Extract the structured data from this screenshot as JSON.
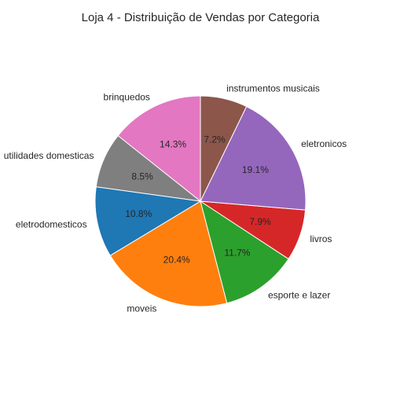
{
  "chart_data": {
    "type": "pie",
    "title": "Loja 4 - Distribuição de Vendas por Categoria",
    "start_angle_deg": 90,
    "direction": "counterclockwise",
    "slices": [
      {
        "label": "brinquedos",
        "value": 14.3,
        "pct_text": "14.3%",
        "color": "#e377c2"
      },
      {
        "label": "utilidades domesticas",
        "value": 8.5,
        "pct_text": "8.5%",
        "color": "#7f7f7f"
      },
      {
        "label": "eletrodomesticos",
        "value": 10.8,
        "pct_text": "10.8%",
        "color": "#1f77b4"
      },
      {
        "label": "moveis",
        "value": 20.4,
        "pct_text": "20.4%",
        "color": "#ff7f0e"
      },
      {
        "label": "esporte e lazer",
        "value": 11.7,
        "pct_text": "11.7%",
        "color": "#2ca02c"
      },
      {
        "label": "livros",
        "value": 7.9,
        "pct_text": "7.9%",
        "color": "#d62728"
      },
      {
        "label": "eletronicos",
        "value": 19.1,
        "pct_text": "19.1%",
        "color": "#9467bd"
      },
      {
        "label": "instrumentos musicais",
        "value": 7.2,
        "pct_text": "7.2%",
        "color": "#8c564b"
      }
    ]
  }
}
